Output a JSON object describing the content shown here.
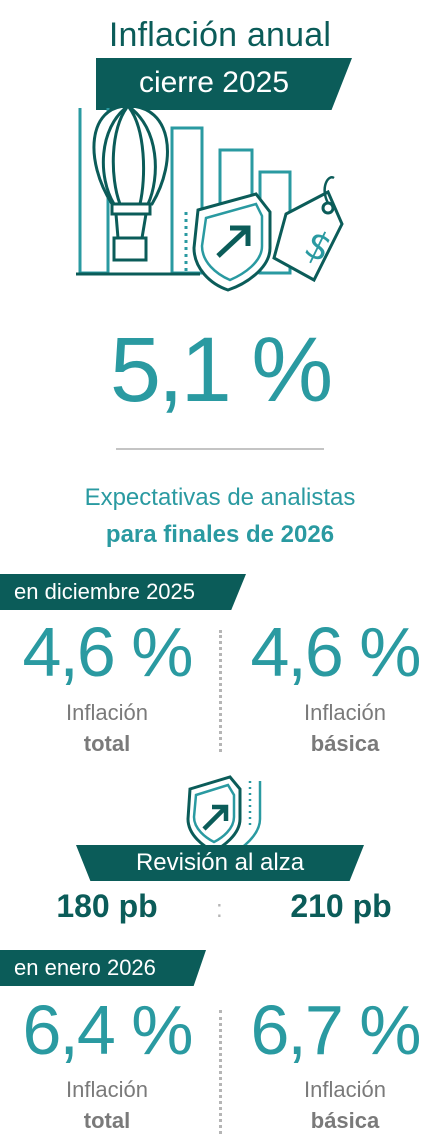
{
  "title": "Inflación anual",
  "banner": "cierre 2025",
  "headline_value": "5,1 %",
  "subtitle_line1": "Expectativas de analistas",
  "subtitle_line2": "para finales de 2026",
  "dec2025": {
    "label": "en diciembre 2025",
    "total": {
      "value": "4,6 %",
      "line1": "Inflación",
      "line2": "total"
    },
    "basic": {
      "value": "4,6 %",
      "line1": "Inflación",
      "line2": "básica"
    }
  },
  "revision": {
    "label": "Revisión al alza",
    "total": "180 pb",
    "basic": "210 pb"
  },
  "jan2026": {
    "label": "en enero 2026",
    "total": {
      "value": "6,4 %",
      "line1": "Inflación",
      "line2": "total"
    },
    "basic": {
      "value": "6,7 %",
      "line1": "Inflación",
      "line2": "básica"
    }
  },
  "colors": {
    "dark": "#0b5c59",
    "teal": "#2a9aa1",
    "gray": "#7a7a7a"
  },
  "icons": [
    "hot-air-balloon-icon",
    "bar-chart-icon",
    "shield-up-arrow-icon",
    "dollar-price-tag-icon"
  ]
}
